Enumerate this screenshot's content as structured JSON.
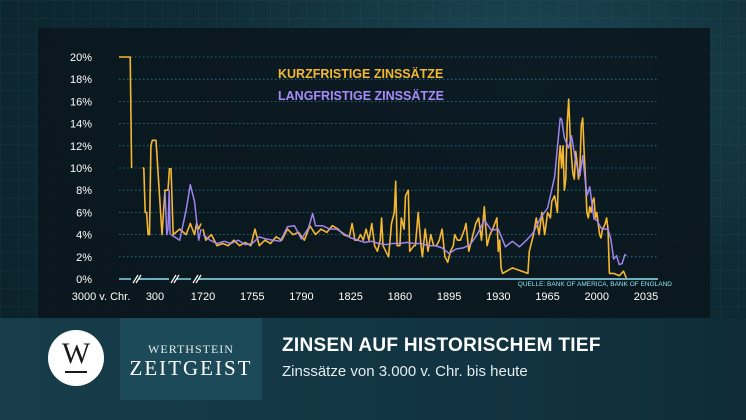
{
  "chart_data": {
    "type": "line",
    "title_short": "KURZFRISTIGE ZINSSÄTZE",
    "title_long": "LANGFRISTIGE ZINSSÄTZE",
    "source": "QUELLE: BANK OF AMERICA, BANK OF ENGLAND",
    "y_tick_labels": [
      "0%",
      "2%",
      "4%",
      "6%",
      "8%",
      "10%",
      "12%",
      "14%",
      "16%",
      "18%",
      "20%"
    ],
    "ylim": [
      0,
      20
    ],
    "x_tick_labels": [
      "3000 v. Chr.",
      "300",
      "1720",
      "1755",
      "1790",
      "1825",
      "1860",
      "1895",
      "1930",
      "1965",
      "2000",
      "2035"
    ],
    "grid": true,
    "colors": {
      "short": "#f5b731",
      "long": "#a78bfa",
      "grid": "#2f7d92",
      "axis": "#8fe3f2"
    },
    "series": [
      {
        "name": "KURZFRISTIGE ZINSSÄTZE",
        "segments": [
          [
            [
              "-3000",
              20
            ],
            [
              "-2700",
              20
            ],
            [
              "-2600",
              20
            ],
            [
              "-2550",
              10
            ]
          ],
          [
            [
              "-1800",
              10
            ],
            [
              "-1600",
              10
            ],
            [
              "-1400",
              6
            ],
            [
              "-1200",
              6
            ],
            [
              "-1000",
              4
            ],
            [
              "-800",
              4
            ],
            [
              "-600",
              12
            ],
            [
              "-400",
              12.5
            ],
            [
              "-200",
              12.5
            ],
            [
              "0",
              4
            ],
            [
              "100",
              8
            ],
            [
              "200",
              8
            ],
            [
              "250",
              10
            ]
          ],
          [
            [
              "300",
              10
            ],
            [
              "400",
              4
            ],
            [
              "700",
              4.5
            ],
            [
              "1000",
              4
            ],
            [
              "1200",
              5
            ],
            [
              "1400",
              4
            ],
            [
              "1500",
              5
            ],
            [
              "1600",
              4.5
            ],
            [
              "1710",
              5
            ]
          ],
          [
            [
              1720,
              4.5
            ],
            [
              1722,
              3.5
            ],
            [
              1726,
              4
            ],
            [
              1730,
              3
            ],
            [
              1734,
              3.2
            ],
            [
              1738,
              3
            ],
            [
              1742,
              3.5
            ],
            [
              1746,
              3
            ],
            [
              1750,
              3.3
            ],
            [
              1754,
              3
            ],
            [
              1757,
              4.5
            ],
            [
              1760,
              3
            ],
            [
              1764,
              3.5
            ],
            [
              1768,
              3.2
            ],
            [
              1772,
              3.8
            ],
            [
              1776,
              3.5
            ],
            [
              1780,
              4.5
            ],
            [
              1784,
              4
            ],
            [
              1788,
              4.2
            ],
            [
              1792,
              3.5
            ],
            [
              1796,
              4.8
            ],
            [
              1800,
              4
            ],
            [
              1804,
              4.5
            ],
            [
              1808,
              4.2
            ],
            [
              1812,
              4.8
            ],
            [
              1816,
              4.5
            ],
            [
              1820,
              4
            ],
            [
              1824,
              3.8
            ],
            [
              1826,
              5
            ],
            [
              1828,
              3.5
            ],
            [
              1830,
              3.5
            ],
            [
              1832,
              4
            ],
            [
              1834,
              3.5
            ],
            [
              1836,
              4.5
            ],
            [
              1838,
              3.5
            ],
            [
              1840,
              5
            ],
            [
              1842,
              3
            ],
            [
              1844,
              2.5
            ],
            [
              1846,
              3.5
            ],
            [
              1847,
              5.5
            ],
            [
              1848,
              3
            ],
            [
              1850,
              2.5
            ],
            [
              1852,
              2
            ],
            [
              1854,
              5
            ],
            [
              1856,
              6
            ],
            [
              1857,
              8.8
            ],
            [
              1858,
              3
            ],
            [
              1860,
              3
            ],
            [
              1861,
              5.5
            ],
            [
              1863,
              4.5
            ],
            [
              1864,
              7.5
            ],
            [
              1866,
              8
            ],
            [
              1867,
              2.5
            ],
            [
              1870,
              3
            ],
            [
              1871,
              3
            ],
            [
              1872,
              4.5
            ],
            [
              1873,
              6
            ],
            [
              1875,
              3
            ],
            [
              1876,
              2
            ],
            [
              1878,
              4.5
            ],
            [
              1880,
              2.5
            ],
            [
              1882,
              4
            ],
            [
              1884,
              3
            ],
            [
              1886,
              3
            ],
            [
              1888,
              3.5
            ],
            [
              1890,
              4.5
            ],
            [
              1892,
              2
            ],
            [
              1894,
              1.5
            ],
            [
              1896,
              2.5
            ],
            [
              1898,
              3
            ],
            [
              1899,
              4
            ],
            [
              1901,
              3.5
            ],
            [
              1903,
              3.5
            ],
            [
              1906,
              4.5
            ],
            [
              1907,
              5
            ],
            [
              1909,
              2.5
            ],
            [
              1911,
              3.5
            ],
            [
              1913,
              4.5
            ],
            [
              1914,
              5
            ],
            [
              1916,
              5.5
            ],
            [
              1918,
              3.5
            ],
            [
              1920,
              6.5
            ],
            [
              1922,
              3
            ],
            [
              1924,
              4
            ],
            [
              1926,
              4.5
            ],
            [
              1929,
              5.5
            ],
            [
              1930,
              2.5
            ],
            [
              1931,
              3.5
            ],
            [
              1932,
              1
            ],
            [
              1933,
              0.5
            ],
            [
              1940,
              1
            ],
            [
              1951,
              0.5
            ],
            [
              1952,
              2.5
            ],
            [
              1955,
              4
            ],
            [
              1957,
              5.5
            ],
            [
              1959,
              4
            ],
            [
              1961,
              6
            ],
            [
              1963,
              4
            ],
            [
              1965,
              6
            ],
            [
              1967,
              5.5
            ],
            [
              1968,
              7
            ],
            [
              1970,
              7.5
            ],
            [
              1972,
              6
            ],
            [
              1973,
              10.5
            ],
            [
              1974,
              12
            ],
            [
              1975,
              10
            ],
            [
              1976,
              12
            ],
            [
              1977,
              8
            ],
            [
              1978,
              9
            ],
            [
              1979,
              14
            ],
            [
              1980,
              16.2
            ],
            [
              1981,
              13
            ],
            [
              1982,
              11
            ],
            [
              1983,
              9.5
            ],
            [
              1984,
              9
            ],
            [
              1985,
              11.5
            ],
            [
              1986,
              10.5
            ],
            [
              1987,
              9
            ],
            [
              1988,
              10
            ],
            [
              1989,
              13.8
            ],
            [
              1990,
              14.5
            ],
            [
              1991,
              11.5
            ],
            [
              1992,
              9
            ],
            [
              1993,
              6
            ],
            [
              1994,
              5.5
            ],
            [
              1995,
              6.5
            ],
            [
              1996,
              6
            ],
            [
              1997,
              7
            ],
            [
              1998,
              7.3
            ],
            [
              1999,
              5.5
            ],
            [
              2000,
              6
            ],
            [
              2001,
              5
            ],
            [
              2002,
              4
            ],
            [
              2003,
              3.7
            ],
            [
              2004,
              4.5
            ],
            [
              2005,
              4.7
            ],
            [
              2006,
              5
            ],
            [
              2007,
              5.5
            ],
            [
              2008,
              4.5
            ],
            [
              2009,
              0.5
            ],
            [
              2012,
              0.5
            ],
            [
              2016,
              0.3
            ],
            [
              2019,
              0.7
            ],
            [
              2021,
              0.1
            ]
          ]
        ]
      },
      {
        "name": "LANGFRISTIGE ZINSSÄTZE",
        "segments": [
          [
            [
              "100",
              7.8
            ],
            [
              "160",
              4
            ],
            [
              "200",
              4.5
            ],
            [
              "240",
              8
            ],
            [
              "270",
              4
            ]
          ],
          [
            [
              "300",
              4
            ],
            [
              "700",
              3.5
            ],
            [
              "1000",
              6.2
            ],
            [
              "1200",
              8.5
            ],
            [
              "1400",
              7
            ],
            [
              "1600",
              3.5
            ],
            [
              "1710",
              4.5
            ]
          ],
          [
            [
              1720,
              4
            ],
            [
              1725,
              3.5
            ],
            [
              1730,
              3.2
            ],
            [
              1735,
              3.4
            ],
            [
              1740,
              3.2
            ],
            [
              1745,
              3.5
            ],
            [
              1750,
              3.1
            ],
            [
              1755,
              3.2
            ],
            [
              1760,
              3.8
            ],
            [
              1765,
              3.6
            ],
            [
              1770,
              3.5
            ],
            [
              1775,
              3.4
            ],
            [
              1780,
              4.7
            ],
            [
              1785,
              4.8
            ],
            [
              1790,
              3.6
            ],
            [
              1795,
              4.6
            ],
            [
              1798,
              5.9
            ],
            [
              1800,
              4.8
            ],
            [
              1805,
              4.8
            ],
            [
              1810,
              4.5
            ],
            [
              1815,
              4.5
            ],
            [
              1820,
              4.1
            ],
            [
              1825,
              3.7
            ],
            [
              1830,
              3.5
            ],
            [
              1835,
              3.3
            ],
            [
              1840,
              3.4
            ],
            [
              1845,
              3.2
            ],
            [
              1850,
              3.1
            ],
            [
              1855,
              3.2
            ],
            [
              1860,
              3.2
            ],
            [
              1865,
              3.3
            ],
            [
              1870,
              3.2
            ],
            [
              1875,
              3.2
            ],
            [
              1880,
              3
            ],
            [
              1885,
              3
            ],
            [
              1890,
              2.8
            ],
            [
              1895,
              2.3
            ],
            [
              1900,
              2.7
            ],
            [
              1905,
              2.8
            ],
            [
              1910,
              3.1
            ],
            [
              1915,
              4
            ],
            [
              1920,
              5.3
            ],
            [
              1925,
              4.4
            ],
            [
              1930,
              4.5
            ],
            [
              1935,
              2.9
            ],
            [
              1940,
              3.4
            ],
            [
              1945,
              2.9
            ],
            [
              1950,
              3.5
            ],
            [
              1955,
              4.2
            ],
            [
              1960,
              5.5
            ],
            [
              1965,
              6.4
            ],
            [
              1970,
              9.2
            ],
            [
              1974,
              14.5
            ],
            [
              1975,
              14.4
            ],
            [
              1977,
              12.7
            ],
            [
              1980,
              11.8
            ],
            [
              1982,
              12.9
            ],
            [
              1985,
              10.6
            ],
            [
              1988,
              9.3
            ],
            [
              1990,
              11.1
            ],
            [
              1993,
              7.5
            ],
            [
              1995,
              8.3
            ],
            [
              1998,
              5.4
            ],
            [
              2000,
              5.3
            ],
            [
              2003,
              4.6
            ],
            [
              2005,
              4.5
            ],
            [
              2008,
              4.5
            ],
            [
              2010,
              3.6
            ],
            [
              2012,
              1.8
            ],
            [
              2014,
              2.1
            ],
            [
              2016,
              1.3
            ],
            [
              2018,
              1.4
            ],
            [
              2020,
              2.2
            ],
            [
              2021,
              2.1
            ]
          ]
        ]
      }
    ]
  },
  "footer": {
    "logo_letter": "W",
    "brand_top": "WERTHSTEIN",
    "brand_bottom": "ZEITGEIST",
    "headline": "ZINSEN AUF HISTORISCHEM TIEF",
    "subline": "Zinssätze von 3.000 v. Chr. bis heute"
  }
}
